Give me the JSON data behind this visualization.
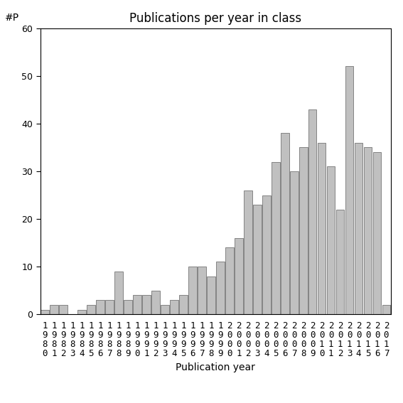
{
  "title": "Publications per year in class",
  "xlabel": "Publication year",
  "ylabel": "#P",
  "ylim": [
    0,
    60
  ],
  "yticks": [
    0,
    10,
    20,
    30,
    40,
    50,
    60
  ],
  "years": [
    "1980",
    "1981",
    "1982",
    "1983",
    "1984",
    "1985",
    "1986",
    "1987",
    "1988",
    "1989",
    "1990",
    "1991",
    "1992",
    "1993",
    "1994",
    "1995",
    "1996",
    "1997",
    "1998",
    "1999",
    "2000",
    "2001",
    "2002",
    "2003",
    "2004",
    "2005",
    "2006",
    "2007",
    "2008",
    "2009",
    "2010",
    "2011",
    "2012",
    "2013",
    "2014",
    "2015",
    "2016",
    "2017"
  ],
  "values": [
    1,
    2,
    2,
    0,
    1,
    2,
    3,
    3,
    9,
    3,
    4,
    4,
    5,
    2,
    3,
    4,
    10,
    10,
    8,
    11,
    14,
    16,
    26,
    23,
    25,
    32,
    38,
    30,
    35,
    43,
    36,
    31,
    22,
    52,
    36,
    35,
    34,
    2
  ],
  "bar_color": "#c0c0c0",
  "bar_edge_color": "#606060",
  "bar_edge_width": 0.5,
  "background_color": "#ffffff",
  "title_fontsize": 12,
  "label_fontsize": 10,
  "tick_fontsize": 9
}
